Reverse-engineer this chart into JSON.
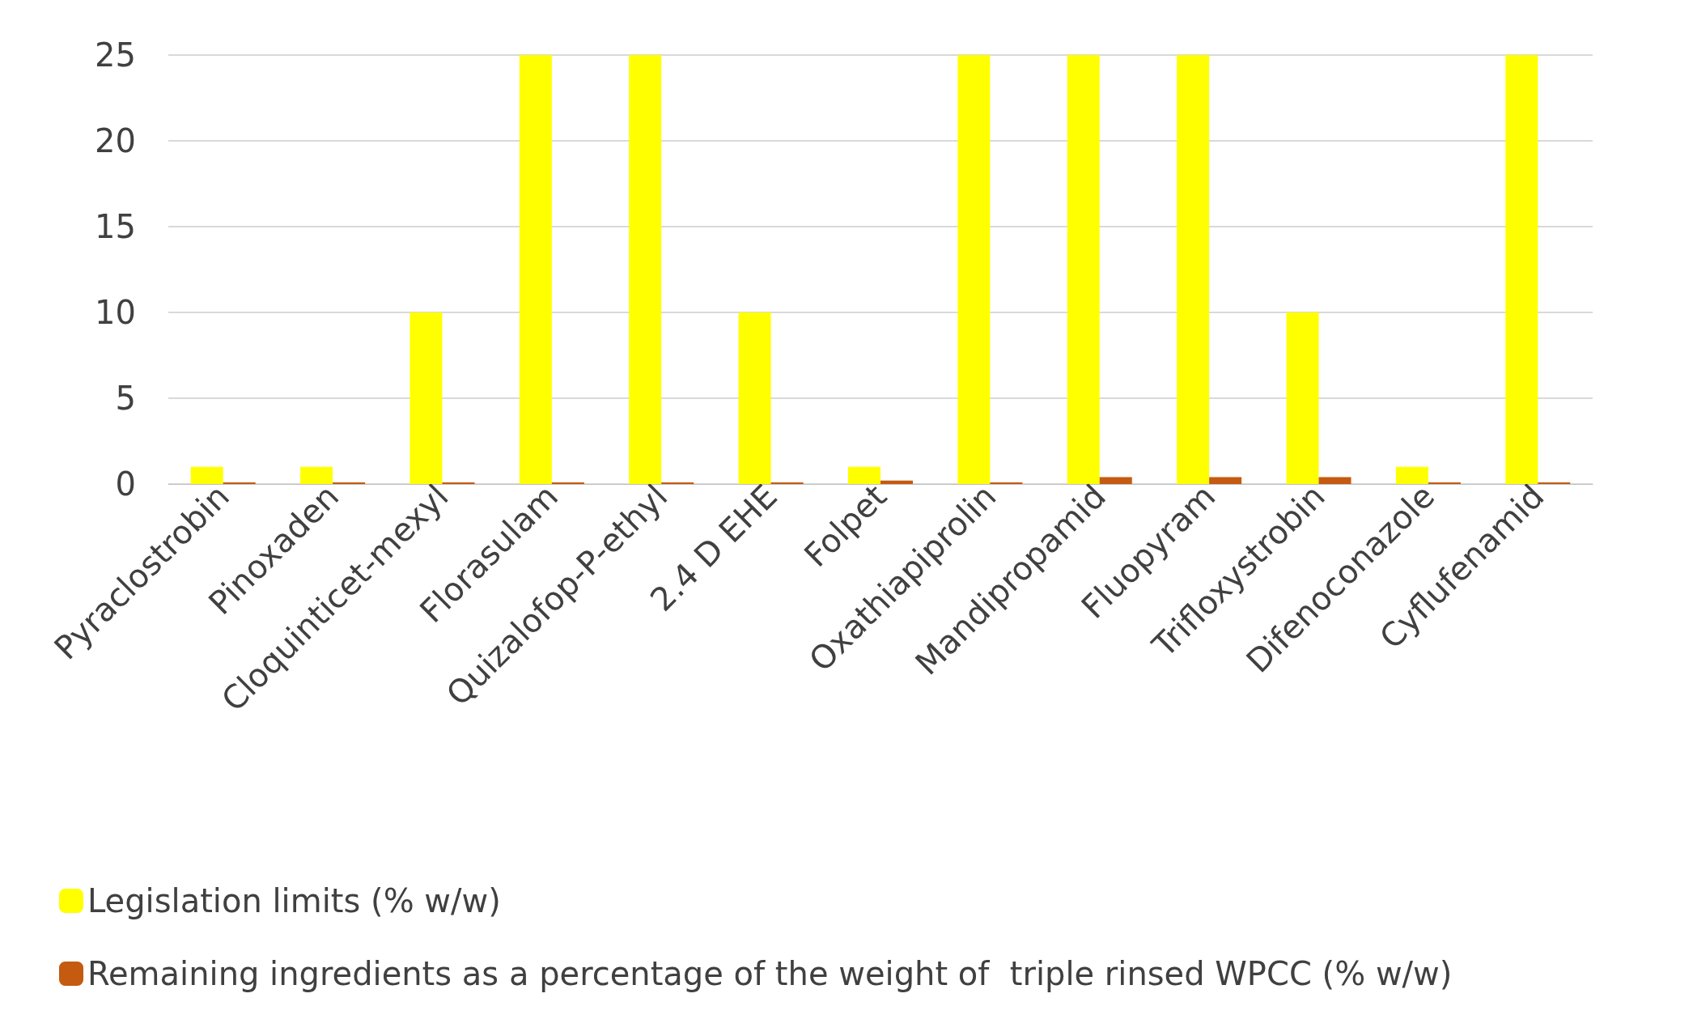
{
  "chart_data": {
    "type": "bar",
    "categories": [
      "Pyraclostrobin",
      "Pinoxaden",
      "Cloquinticet-mexyl",
      "Florasulam",
      "Quizalofop-P-ethyl",
      "2.4 D EHE",
      "Folpet",
      "Oxathiapiprolin",
      "Mandipropamid",
      "Fluopyram",
      "Trifloxystrobin",
      "Difenoconazole",
      "Cyflufenamid"
    ],
    "series": [
      {
        "name": "Legislation limits (% w/w)",
        "color": "#ffff00",
        "values": [
          1,
          1,
          10,
          25,
          25,
          10,
          1,
          25,
          25,
          25,
          10,
          1,
          25
        ]
      },
      {
        "name": "Remaining ingredients as a percentage of the weight of  triple rinsed WPCC (% w/w)",
        "color": "#c55a11",
        "values": [
          0.1,
          0.1,
          0.1,
          0.1,
          0.1,
          0.1,
          0.2,
          0.1,
          0.4,
          0.4,
          0.4,
          0.1,
          0.1
        ]
      }
    ],
    "ylim": [
      0,
      25
    ],
    "yticks": [
      0,
      5,
      10,
      15,
      20,
      25
    ],
    "grid": "y",
    "legend": "bottom left"
  }
}
